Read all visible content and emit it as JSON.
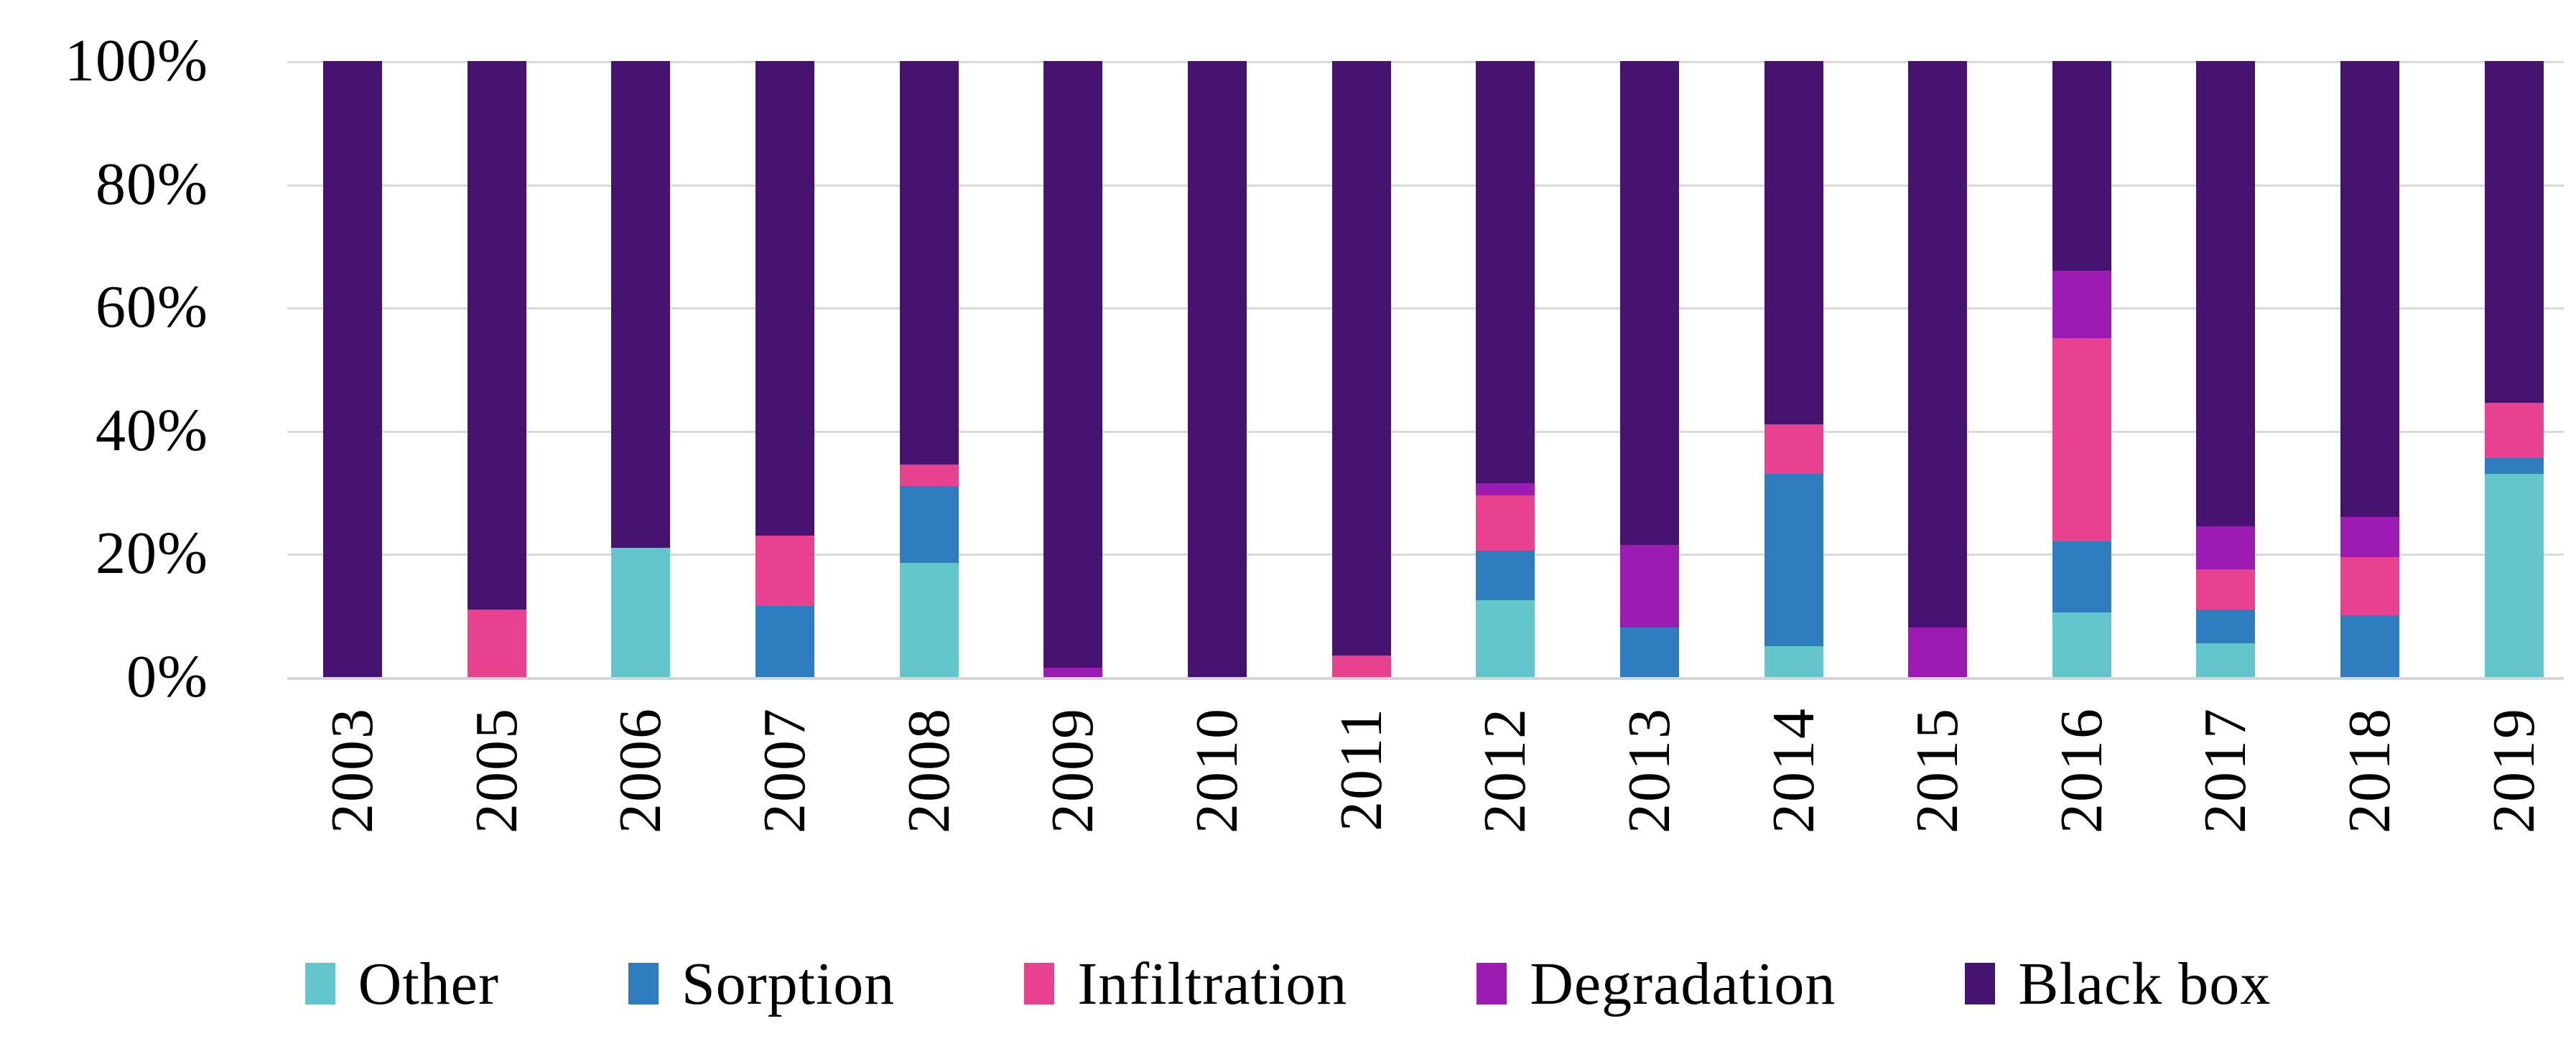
{
  "chart_data": {
    "type": "bar",
    "variant": "stacked-100-percent",
    "title": "",
    "xlabel": "",
    "ylabel": "",
    "ylim": [
      0,
      100
    ],
    "grid": true,
    "gridline_color": "#d9d9d9",
    "legend_position": "bottom",
    "y_ticks": [
      "100%",
      "80%",
      "60%",
      "40%",
      "20%",
      "0%"
    ],
    "categories": [
      "2003",
      "2005",
      "2006",
      "2007",
      "2008",
      "2009",
      "2010",
      "2011",
      "2012",
      "2013",
      "2014",
      "2015",
      "2016",
      "2017",
      "2018",
      "2019"
    ],
    "series": [
      {
        "name": "Other",
        "color": "#63C6CD",
        "values": [
          0,
          0,
          21,
          0,
          18.5,
          0,
          0,
          0,
          12.5,
          0,
          5,
          0,
          10.5,
          5.5,
          0,
          33
        ]
      },
      {
        "name": "Sorption",
        "color": "#2E7EBF",
        "values": [
          0,
          0,
          0,
          11.5,
          12.5,
          0,
          0,
          0,
          8,
          8,
          28,
          0,
          11.5,
          5.5,
          10,
          2.5
        ]
      },
      {
        "name": "Infiltration",
        "color": "#E8418F",
        "values": [
          0,
          11,
          0,
          11.5,
          3.5,
          0,
          0,
          3.5,
          9,
          0,
          8,
          0,
          33,
          6.5,
          9.5,
          9
        ]
      },
      {
        "name": "Degradation",
        "color": "#9C1BB2",
        "values": [
          0,
          0,
          0,
          0,
          0,
          1.5,
          0,
          0,
          2,
          13.5,
          0,
          8,
          11,
          7,
          6.5,
          0
        ]
      },
      {
        "name": "Black box",
        "color": "#471370",
        "values": [
          100,
          89,
          79,
          77,
          65.5,
          98.5,
          100,
          96.5,
          68.5,
          78.5,
          59,
          92,
          34,
          75.5,
          74,
          55.5
        ]
      }
    ]
  },
  "legend": {
    "labels": [
      "Other",
      "Sorption",
      "Infiltration",
      "Degradation",
      "Black box"
    ]
  }
}
